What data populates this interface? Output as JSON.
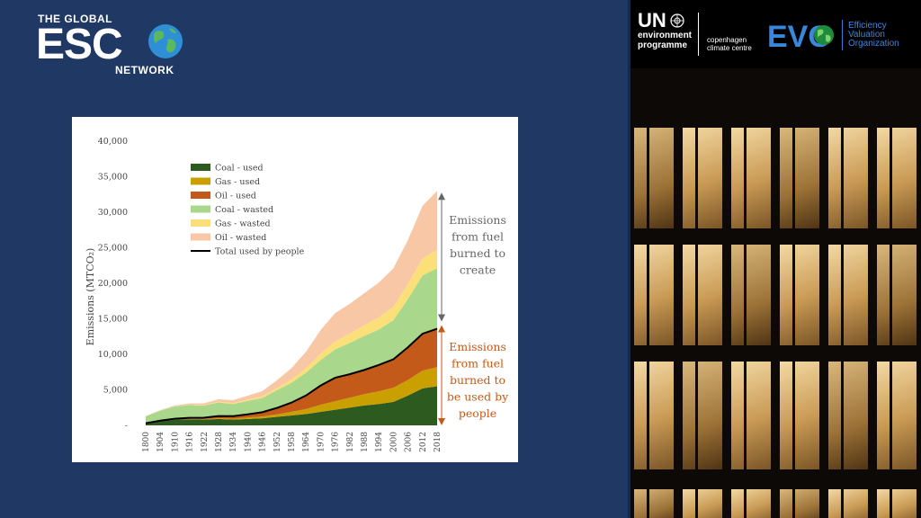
{
  "logo": {
    "line1": "THE GLOBAL",
    "line2": "ESC",
    "line3": "NETWORK"
  },
  "partners": {
    "un_mark": "UN",
    "un_line1": "environment",
    "un_line2": "programme",
    "cph_line1": "copenhagen",
    "cph_line2": "climate centre",
    "evo_mark": "EVO",
    "evo_line1": "Efficiency",
    "evo_line2": "Valuation",
    "evo_line3": "Organization",
    "evo_color": "#3a86d8"
  },
  "chart_data": {
    "type": "area",
    "ylabel": "Emissions (MTCO₂)",
    "ylim": [
      0,
      40000
    ],
    "yticks": [
      0,
      5000,
      10000,
      15000,
      20000,
      25000,
      30000,
      35000,
      40000
    ],
    "ytick_labels": [
      "-",
      "5,000",
      "10,000",
      "15,000",
      "20,000",
      "25,000",
      "30,000",
      "35,000",
      "40,000"
    ],
    "x": [
      1800,
      1904,
      1910,
      1916,
      1922,
      1928,
      1934,
      1940,
      1946,
      1952,
      1958,
      1964,
      1970,
      1976,
      1982,
      1988,
      1994,
      2000,
      2006,
      2012,
      2018
    ],
    "stacked": true,
    "series": [
      {
        "name": "Coal - used",
        "color": "#2d5a1f",
        "values": [
          300,
          600,
          800,
          850,
          800,
          900,
          800,
          900,
          1000,
          1200,
          1400,
          1600,
          1900,
          2200,
          2500,
          2800,
          3000,
          3300,
          4200,
          5200,
          5500
        ]
      },
      {
        "name": "Gas - used",
        "color": "#c9a000",
        "values": [
          0,
          20,
          40,
          60,
          80,
          120,
          150,
          200,
          250,
          350,
          500,
          700,
          1000,
          1200,
          1400,
          1600,
          1800,
          2000,
          2200,
          2500,
          2700
        ]
      },
      {
        "name": "Oil - used",
        "color": "#c45a1a",
        "values": [
          0,
          50,
          100,
          150,
          200,
          300,
          350,
          450,
          600,
          900,
          1300,
          1900,
          2700,
          3300,
          3300,
          3400,
          3700,
          4000,
          4600,
          5200,
          5400
        ]
      },
      {
        "name": "Coal - wasted",
        "color": "#a9d88c",
        "values": [
          1000,
          1400,
          1700,
          1800,
          1700,
          1900,
          1700,
          1900,
          2000,
          2500,
          2800,
          3200,
          3600,
          4000,
          4400,
          4800,
          5000,
          5500,
          6800,
          8200,
          8500
        ]
      },
      {
        "name": "Gas - wasted",
        "color": "#fbe07a",
        "values": [
          0,
          20,
          40,
          50,
          70,
          100,
          130,
          170,
          220,
          300,
          450,
          650,
          900,
          1100,
          1300,
          1500,
          1700,
          1900,
          2100,
          2400,
          2600
        ]
      },
      {
        "name": "Oil - wasted",
        "color": "#f7c7a6",
        "values": [
          0,
          60,
          120,
          180,
          250,
          350,
          420,
          550,
          750,
          1100,
          1600,
          2300,
          3300,
          4000,
          4200,
          4500,
          4900,
          5400,
          6200,
          7400,
          8300
        ]
      }
    ],
    "line": {
      "name": "Total used by people",
      "color": "#000000",
      "values": [
        300,
        670,
        940,
        1060,
        1080,
        1320,
        1300,
        1550,
        1850,
        2450,
        3200,
        4200,
        5600,
        6700,
        7200,
        7800,
        8500,
        9300,
        11000,
        12900,
        13600
      ]
    },
    "annotations": {
      "upper": {
        "lines": [
          "Emissions",
          "from fuel",
          "burned to",
          "create"
        ],
        "color": "#666666"
      },
      "lower": {
        "lines": [
          "Emissions",
          "from fuel",
          "burned to",
          "be used by",
          "people"
        ],
        "color": "#c45a1a"
      }
    },
    "legend_position": "top-left"
  }
}
